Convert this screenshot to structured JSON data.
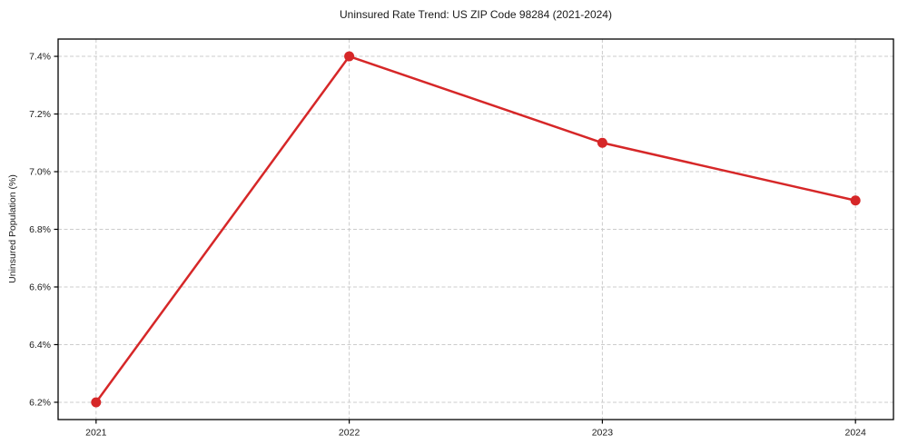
{
  "chart_data": {
    "type": "line",
    "title": "Uninsured Rate Trend: US ZIP Code 98284 (2021-2024)",
    "xlabel": "",
    "ylabel": "Uninsured Population (%)",
    "x": [
      2021,
      2022,
      2023,
      2024
    ],
    "values": [
      6.2,
      7.4,
      7.1,
      6.9
    ],
    "xticks": [
      2021,
      2022,
      2023,
      2024
    ],
    "xtick_labels": [
      "2021",
      "2022",
      "2023",
      "2024"
    ],
    "yticks": [
      6.2,
      6.4,
      6.6,
      6.8,
      7.0,
      7.2,
      7.4
    ],
    "ytick_labels": [
      "6.2%",
      "6.4%",
      "6.6%",
      "6.8%",
      "7.0%",
      "7.2%",
      "7.4%"
    ],
    "xlim": [
      2020.85,
      2024.15
    ],
    "ylim": [
      6.14,
      7.46
    ],
    "grid": true,
    "grid_style": "dashed",
    "legend": "none",
    "line_color": "#d62728",
    "marker": "circle",
    "marker_color": "#d62728",
    "grid_color": "#cccccc",
    "spine_color": "#000000",
    "text_color": "#1a1a1a",
    "background": "#ffffff"
  }
}
